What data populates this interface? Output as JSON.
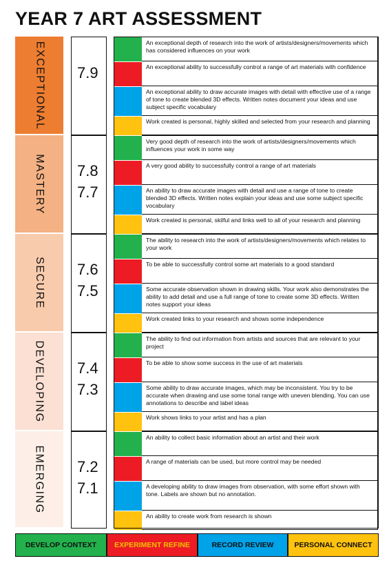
{
  "title": "YEAR 7 ART ASSESSMENT",
  "colors": {
    "develop": "#22b14c",
    "experiment": "#ed1c24",
    "record": "#00a2e8",
    "personal": "#ffc20e"
  },
  "bands": [
    {
      "label": "EXCEPTIONAL",
      "color": "#ed7d31",
      "grades": [
        "7.9"
      ],
      "rows": [
        "An exceptional depth of research into the work of artists/designers/movements which has considered influences on your work",
        "An exceptional ability to successfully control a range of art materials with confidence",
        "An exceptional ability to draw accurate images with detail with effective use of a range of tone to create blended 3D effects. Written notes document your ideas and use subject specific vocabulary",
        "Work created is personal, highly skilled and selected from your research and planning"
      ]
    },
    {
      "label": "MASTERY",
      "color": "#f4b183",
      "grades": [
        "7.8",
        "7.7"
      ],
      "rows": [
        "Very good depth of research into the work of artists/designers/movements which influences your work in some way",
        "A very good ability to successfully control a range of art materials",
        "An ability to draw accurate images with detail and use a range of tone to create blended 3D effects. Written notes explain your ideas and use some subject specific vocabulary",
        "Work created is personal, skilful and links well to all of your research and planning"
      ]
    },
    {
      "label": "SECURE",
      "color": "#f8cbad",
      "grades": [
        "7.6",
        "7.5"
      ],
      "rows": [
        "The ability to research into the work of artists/designers/movements which relates to your work",
        "To be able to successfully control some art materials to a good standard",
        "Some accurate observation shown in drawing skills. Your work also demonstrates the ability to add detail and use a full range of tone to create some 3D effects. Written notes support your ideas",
        "Work created links to your research and shows some independence"
      ]
    },
    {
      "label": "DEVELOPING",
      "color": "#fbe0d3",
      "grades": [
        "7.4",
        "7.3"
      ],
      "rows": [
        "The ability to find out information from artists and sources that are relevant to your project",
        "To be able to show some success in the use of art materials",
        "Some ability to draw accurate images, which may be inconsistent. You try to be accurate when drawing and use some tonal range with uneven blending. You can use annotations to describe and label ideas",
        "Work shows links to your artist and has a plan"
      ]
    },
    {
      "label": "EMERGING",
      "color": "#fdefe8",
      "grades": [
        "7.2",
        "7.1"
      ],
      "rows": [
        "An ability to collect basic information about an artist and their work",
        "A range of materials can be used, but more control may be needed",
        "A developing ability to draw images from observation, with some effort shown with tone. Labels are shown but no annotation.",
        "An ability to create work from research is shown"
      ]
    }
  ],
  "legend": [
    {
      "label": "DEVELOP CONTEXT",
      "color": "#22b14c",
      "text_color": "#111111"
    },
    {
      "label": "EXPERIMENT REFINE",
      "color": "#ed1c24",
      "text_color": "#f2c200"
    },
    {
      "label": "RECORD REVIEW",
      "color": "#00a2e8",
      "text_color": "#111111"
    },
    {
      "label": "PERSONAL CONNECT",
      "color": "#ffc20e",
      "text_color": "#111111"
    }
  ]
}
